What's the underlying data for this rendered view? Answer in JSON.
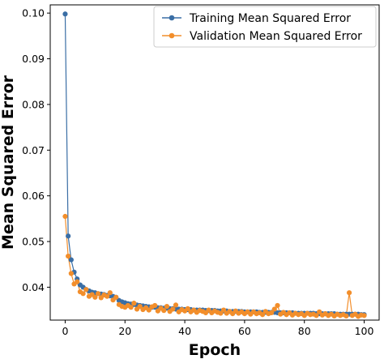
{
  "chart_data": {
    "type": "line",
    "xlabel": "Epoch",
    "ylabel": "Mean Squared Error",
    "xlim": [
      -5,
      105
    ],
    "ylim": [
      0.0328,
      0.1018
    ],
    "xticks": [
      0,
      20,
      40,
      60,
      80,
      100
    ],
    "yticks": [
      0.04,
      0.05,
      0.06,
      0.07,
      0.08,
      0.09,
      0.1
    ],
    "ytick_labels": [
      "0.04",
      "0.05",
      "0.06",
      "0.07",
      "0.08",
      "0.09",
      "0.10"
    ],
    "legend_position": "top-right",
    "grid": false,
    "markers": true,
    "series": [
      {
        "name": "Training Mean Squared Error",
        "color": "#3a6ea5",
        "x": [
          0,
          1,
          2,
          3,
          4,
          5,
          6,
          7,
          8,
          9,
          10,
          11,
          12,
          13,
          14,
          15,
          16,
          17,
          18,
          19,
          20,
          21,
          22,
          23,
          24,
          25,
          26,
          27,
          28,
          29,
          30,
          31,
          32,
          33,
          34,
          35,
          36,
          37,
          38,
          39,
          40,
          41,
          42,
          43,
          44,
          45,
          46,
          47,
          48,
          49,
          50,
          51,
          52,
          53,
          54,
          55,
          56,
          57,
          58,
          59,
          60,
          61,
          62,
          63,
          64,
          65,
          66,
          67,
          68,
          69,
          70,
          71,
          72,
          73,
          74,
          75,
          76,
          77,
          78,
          79,
          80,
          81,
          82,
          83,
          84,
          85,
          86,
          87,
          88,
          89,
          90,
          91,
          92,
          93,
          94,
          95,
          96,
          97,
          98,
          99,
          100
        ],
        "y": [
          0.0998,
          0.0512,
          0.046,
          0.0433,
          0.0418,
          0.0405,
          0.04,
          0.0395,
          0.0392,
          0.0389,
          0.0388,
          0.0386,
          0.0385,
          0.0384,
          0.0382,
          0.0381,
          0.038,
          0.0378,
          0.0371,
          0.0368,
          0.0366,
          0.0364,
          0.0363,
          0.0362,
          0.0361,
          0.036,
          0.0359,
          0.0358,
          0.0357,
          0.0356,
          0.0356,
          0.0355,
          0.0355,
          0.0354,
          0.0354,
          0.0353,
          0.0353,
          0.0352,
          0.0352,
          0.0352,
          0.0351,
          0.0351,
          0.0351,
          0.035,
          0.035,
          0.035,
          0.035,
          0.0349,
          0.0349,
          0.0349,
          0.0349,
          0.0348,
          0.0348,
          0.0348,
          0.0348,
          0.0347,
          0.0347,
          0.0347,
          0.0347,
          0.0347,
          0.0346,
          0.0346,
          0.0346,
          0.0346,
          0.0346,
          0.0345,
          0.0345,
          0.0345,
          0.0345,
          0.0345,
          0.0345,
          0.0344,
          0.0344,
          0.0344,
          0.0344,
          0.0344,
          0.0344,
          0.0343,
          0.0343,
          0.0343,
          0.0343,
          0.0343,
          0.0343,
          0.0343,
          0.0342,
          0.0342,
          0.0342,
          0.0342,
          0.0342,
          0.0342,
          0.0342,
          0.0341,
          0.0341,
          0.0341,
          0.0341,
          0.0341,
          0.0341,
          0.0341,
          0.0341,
          0.034,
          0.034
        ]
      },
      {
        "name": "Validation Mean Squared Error",
        "color": "#f28e2b",
        "x": [
          0,
          1,
          2,
          3,
          4,
          5,
          6,
          7,
          8,
          9,
          10,
          11,
          12,
          13,
          14,
          15,
          16,
          17,
          18,
          19,
          20,
          21,
          22,
          23,
          24,
          25,
          26,
          27,
          28,
          29,
          30,
          31,
          32,
          33,
          34,
          35,
          36,
          37,
          38,
          39,
          40,
          41,
          42,
          43,
          44,
          45,
          46,
          47,
          48,
          49,
          50,
          51,
          52,
          53,
          54,
          55,
          56,
          57,
          58,
          59,
          60,
          61,
          62,
          63,
          64,
          65,
          66,
          67,
          68,
          69,
          70,
          71,
          72,
          73,
          74,
          75,
          76,
          77,
          78,
          79,
          80,
          81,
          82,
          83,
          84,
          85,
          86,
          87,
          88,
          89,
          90,
          91,
          92,
          93,
          94,
          95,
          96,
          97,
          98,
          99,
          100
        ],
        "y": [
          0.0555,
          0.0468,
          0.043,
          0.0407,
          0.0412,
          0.039,
          0.0386,
          0.0395,
          0.038,
          0.0384,
          0.0378,
          0.0386,
          0.0377,
          0.0383,
          0.038,
          0.0388,
          0.0372,
          0.0378,
          0.0362,
          0.0358,
          0.0356,
          0.036,
          0.0356,
          0.0365,
          0.0352,
          0.0358,
          0.0351,
          0.0355,
          0.035,
          0.0357,
          0.036,
          0.0348,
          0.0354,
          0.0349,
          0.0358,
          0.0347,
          0.0352,
          0.0361,
          0.0346,
          0.0351,
          0.0348,
          0.0353,
          0.0346,
          0.035,
          0.0345,
          0.0349,
          0.0347,
          0.0344,
          0.035,
          0.0344,
          0.0348,
          0.0345,
          0.0343,
          0.035,
          0.0343,
          0.0347,
          0.0342,
          0.0348,
          0.0343,
          0.0346,
          0.0342,
          0.0346,
          0.0341,
          0.0346,
          0.0342,
          0.0344,
          0.034,
          0.0347,
          0.0342,
          0.0344,
          0.0352,
          0.036,
          0.0341,
          0.0345,
          0.034,
          0.0344,
          0.0339,
          0.0343,
          0.034,
          0.0342,
          0.0338,
          0.0343,
          0.034,
          0.0341,
          0.0338,
          0.0346,
          0.0339,
          0.0342,
          0.0338,
          0.0341,
          0.0337,
          0.0341,
          0.0338,
          0.034,
          0.0337,
          0.0388,
          0.0338,
          0.0341,
          0.0336,
          0.0339,
          0.0338
        ]
      }
    ]
  }
}
